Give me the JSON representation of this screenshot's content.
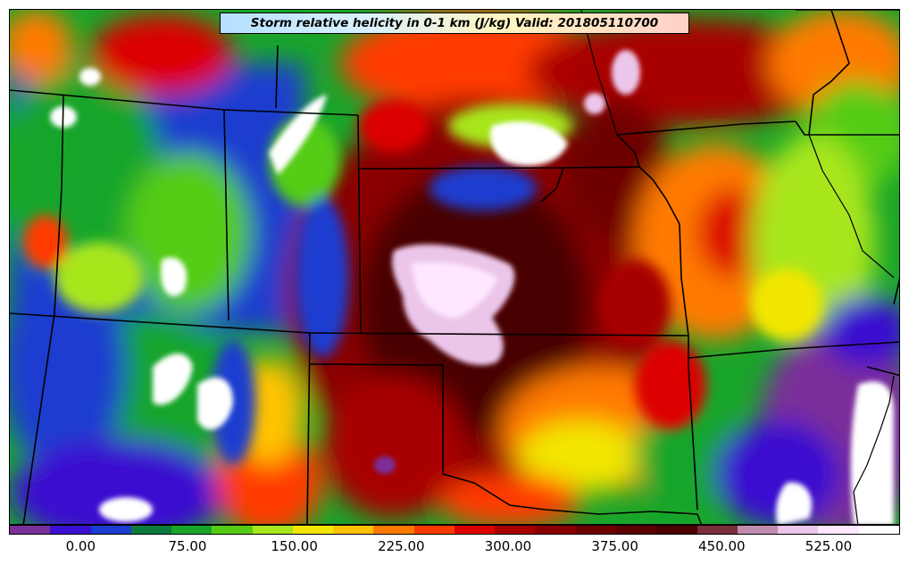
{
  "title": "Storm relative helicity in 0-1 km (J/kg) Valid: 201805110700",
  "colorbar": {
    "colors": [
      "#7b2f9a",
      "#3a10d0",
      "#1a3ccf",
      "#0b7a3c",
      "#19a52a",
      "#55cc14",
      "#a8e61c",
      "#f2e600",
      "#ffc200",
      "#ff7a00",
      "#ff3a00",
      "#dc0000",
      "#a80000",
      "#8a0000",
      "#6e0000",
      "#5a0000",
      "#4a0000",
      "#7a2e3a",
      "#c08cb0",
      "#ecc6ea",
      "#ffe8ff",
      "#ffffff"
    ],
    "tick_labels": [
      "0.00",
      "75.00",
      "150.00",
      "225.00",
      "300.00",
      "375.00",
      "450.00",
      "525.00"
    ],
    "tick_fractions": [
      0.0805,
      0.2004,
      0.3203,
      0.4402,
      0.5601,
      0.68,
      0.7999,
      0.9198
    ]
  }
}
